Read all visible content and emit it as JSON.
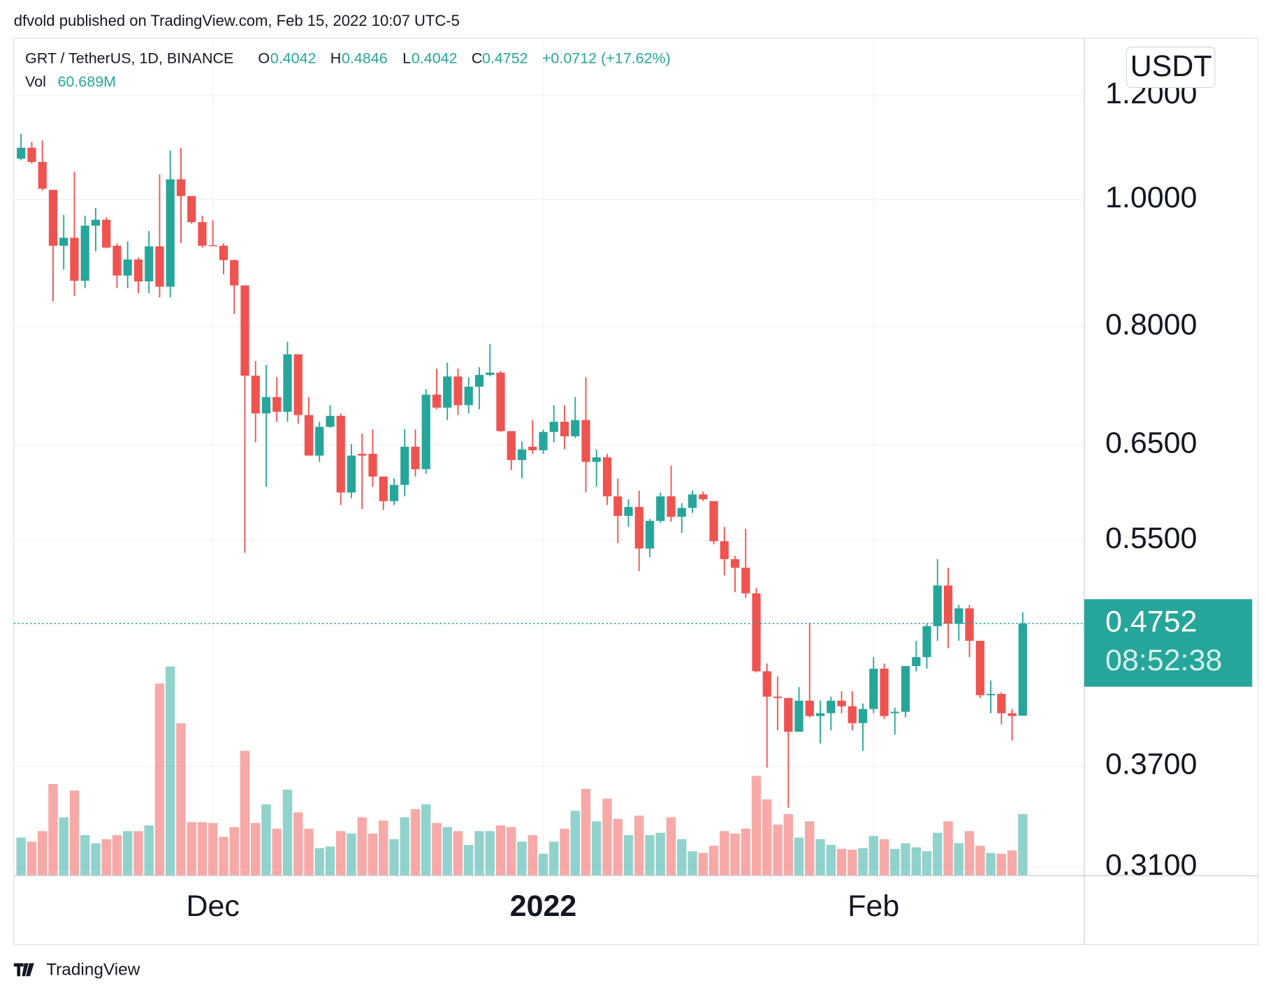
{
  "published": "dfvold published on TradingView.com, Feb 15, 2022 10:07 UTC-5",
  "brand": "TradingView",
  "chart_data": {
    "type": "candlestick",
    "symbol": "GRT / TetherUS, 1D, BINANCE",
    "legend_keys": [
      "O",
      "H",
      "L",
      "C"
    ],
    "change_label": "+0.0712 (+17.62%)",
    "volume_name": "Vol",
    "volume_last_label": "60.689M",
    "currency": "USDT",
    "countdown": "08:52:38",
    "up_color": "#26a69a",
    "down_color": "#ef5350",
    "log_scale": true,
    "grid": true,
    "ylim": [
      0.3053,
      1.3272
    ],
    "yticks": [
      {
        "value": 1.2,
        "label": "1.2000"
      },
      {
        "value": 1.0,
        "label": "1.0000"
      },
      {
        "value": 0.8,
        "label": "0.8000"
      },
      {
        "value": 0.65,
        "label": "0.6500"
      },
      {
        "value": 0.55,
        "label": "0.5500"
      },
      {
        "value": 0.37,
        "label": "0.3700"
      },
      {
        "value": 0.31,
        "label": "0.3100"
      }
    ],
    "xlim": [
      -0.685,
      99.77
    ],
    "xticks": [
      {
        "value": 18,
        "label": "Dec"
      },
      {
        "value": 49,
        "label": "2022"
      },
      {
        "value": 80,
        "label": "Feb"
      }
    ],
    "open": [
      1.074,
      1.095,
      1.068,
      1.017,
      0.922,
      0.935,
      0.867,
      0.955,
      0.965,
      0.922,
      0.875,
      0.9,
      0.866,
      0.921,
      0.858,
      1.036,
      1.006,
      0.961,
      0.923,
      0.922,
      0.899,
      0.86,
      0.734,
      0.687,
      0.707,
      0.689,
      0.762,
      0.685,
      0.638,
      0.671,
      0.684,
      0.598,
      0.64,
      0.64,
      0.615,
      0.589,
      0.606,
      0.648,
      0.623,
      0.71,
      0.694,
      0.733,
      0.697,
      0.72,
      0.735,
      0.738,
      0.666,
      0.633,
      0.648,
      0.644,
      0.665,
      0.677,
      0.66,
      0.679,
      0.631,
      0.636,
      0.594,
      0.574,
      0.583,
      0.542,
      0.569,
      0.594,
      0.573,
      0.582,
      0.596,
      0.589,
      0.549,
      0.532,
      0.524,
      0.501,
      0.437,
      0.418,
      0.417,
      0.393,
      0.415,
      0.404,
      0.406,
      0.415,
      0.411,
      0.399,
      0.409,
      0.439,
      0.406,
      0.407,
      0.441,
      0.448,
      0.473,
      0.508,
      0.475,
      0.488,
      0.461,
      0.419,
      0.42,
      0.406,
      0.4042
    ],
    "high": [
      1.122,
      1.106,
      1.109,
      1.017,
      0.973,
      1.05,
      0.972,
      0.985,
      0.969,
      0.926,
      0.929,
      0.903,
      0.946,
      1.045,
      1.09,
      1.095,
      1.006,
      0.972,
      0.964,
      0.926,
      0.9,
      0.86,
      0.753,
      0.748,
      0.732,
      0.779,
      0.762,
      0.707,
      0.677,
      0.697,
      0.687,
      0.651,
      0.663,
      0.668,
      0.615,
      0.613,
      0.668,
      0.668,
      0.717,
      0.743,
      0.751,
      0.743,
      0.732,
      0.745,
      0.776,
      0.74,
      0.666,
      0.654,
      0.679,
      0.668,
      0.697,
      0.697,
      0.707,
      0.732,
      0.645,
      0.64,
      0.613,
      0.591,
      0.6,
      0.571,
      0.598,
      0.627,
      0.587,
      0.6,
      0.599,
      0.589,
      0.563,
      0.535,
      0.561,
      0.506,
      0.443,
      0.433,
      0.417,
      0.425,
      0.476,
      0.415,
      0.418,
      0.422,
      0.422,
      0.413,
      0.448,
      0.443,
      0.41,
      0.441,
      0.461,
      0.475,
      0.532,
      0.524,
      0.491,
      0.491,
      0.461,
      0.43,
      0.421,
      0.409,
      0.4846
    ],
    "low": [
      1.071,
      1.065,
      1.016,
      0.836,
      0.884,
      0.844,
      0.856,
      0.913,
      0.918,
      0.856,
      0.856,
      0.848,
      0.848,
      0.842,
      0.842,
      0.926,
      0.958,
      0.919,
      0.922,
      0.877,
      0.818,
      0.538,
      0.653,
      0.604,
      0.677,
      0.677,
      0.675,
      0.638,
      0.631,
      0.67,
      0.585,
      0.592,
      0.581,
      0.604,
      0.58,
      0.585,
      0.594,
      0.615,
      0.618,
      0.692,
      0.679,
      0.685,
      0.687,
      0.692,
      0.733,
      0.665,
      0.622,
      0.613,
      0.64,
      0.64,
      0.653,
      0.645,
      0.658,
      0.598,
      0.604,
      0.585,
      0.547,
      0.563,
      0.521,
      0.534,
      0.567,
      0.568,
      0.557,
      0.577,
      0.589,
      0.546,
      0.517,
      0.502,
      0.497,
      0.436,
      0.369,
      0.394,
      0.344,
      0.393,
      0.403,
      0.385,
      0.394,
      0.406,
      0.394,
      0.38,
      0.406,
      0.402,
      0.391,
      0.403,
      0.437,
      0.439,
      0.461,
      0.455,
      0.461,
      0.448,
      0.417,
      0.406,
      0.398,
      0.387,
      0.4042
    ],
    "close": [
      1.095,
      1.068,
      1.019,
      0.922,
      0.935,
      0.867,
      0.955,
      0.965,
      0.919,
      0.875,
      0.9,
      0.866,
      0.921,
      0.858,
      1.036,
      1.006,
      0.961,
      0.922,
      0.922,
      0.899,
      0.86,
      0.734,
      0.687,
      0.707,
      0.689,
      0.762,
      0.685,
      0.638,
      0.671,
      0.684,
      0.598,
      0.638,
      0.638,
      0.615,
      0.589,
      0.606,
      0.648,
      0.623,
      0.71,
      0.694,
      0.733,
      0.697,
      0.72,
      0.735,
      0.738,
      0.666,
      0.633,
      0.645,
      0.644,
      0.665,
      0.677,
      0.66,
      0.679,
      0.631,
      0.636,
      0.594,
      0.574,
      0.583,
      0.542,
      0.569,
      0.594,
      0.573,
      0.582,
      0.596,
      0.591,
      0.549,
      0.532,
      0.524,
      0.501,
      0.437,
      0.418,
      0.417,
      0.393,
      0.415,
      0.404,
      0.406,
      0.415,
      0.411,
      0.399,
      0.409,
      0.439,
      0.404,
      0.407,
      0.441,
      0.448,
      0.473,
      0.508,
      0.475,
      0.488,
      0.461,
      0.419,
      0.42,
      0.406,
      0.404,
      0.4752
    ],
    "volume": [
      37.5,
      33.5,
      43.9,
      90.2,
      57.5,
      83.8,
      39.9,
      31.9,
      35.9,
      39.9,
      43.9,
      43.9,
      49.5,
      189.2,
      206.0,
      150.1,
      52.7,
      52.7,
      51.9,
      38.3,
      47.9,
      123.0,
      51.9,
      70.3,
      46.3,
      84.6,
      62.3,
      46.3,
      27.1,
      28.7,
      43.9,
      41.5,
      57.5,
      41.5,
      54.3,
      35.9,
      57.5,
      65.5,
      70.3,
      51.9,
      47.9,
      43.9,
      30.3,
      43.9,
      43.9,
      49.5,
      47.9,
      33.5,
      39.9,
      21.6,
      33.5,
      46.3,
      63.9,
      85.4,
      53.5,
      75.9,
      55.9,
      39.9,
      59.1,
      39.9,
      42.3,
      57.5,
      35.9,
      24.0,
      22.4,
      29.5,
      43.9,
      41.5,
      46.3,
      98.2,
      75.1,
      50.3,
      60.7,
      37.5,
      53.5,
      35.9,
      30.3,
      26.4,
      25.6,
      27.1,
      39.1,
      35.9,
      26.4,
      31.9,
      27.9,
      24.0,
      42.3,
      53.5,
      31.9,
      43.9,
      29.5,
      22.4,
      21.6,
      24.8,
      60.689
    ]
  }
}
